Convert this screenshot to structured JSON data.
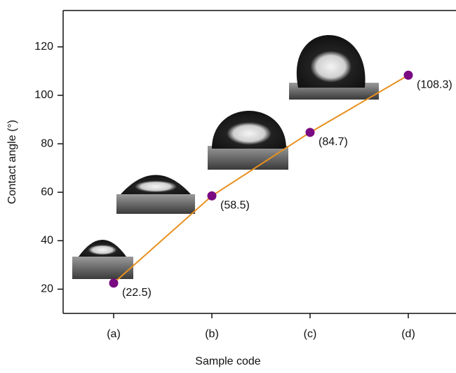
{
  "chart_data": {
    "type": "line",
    "x_label": "Sample code",
    "y_label": "Contact angle (°)",
    "categories": [
      "(a)",
      "(b)",
      "(c)",
      "(d)"
    ],
    "values": [
      22.5,
      58.5,
      84.7,
      108.3
    ],
    "value_labels": [
      "(22.5)",
      "(58.5)",
      "(84.7)",
      "(108.3)"
    ],
    "color": "#e8901e",
    "marker_color": "#7a0a82",
    "ylim": [
      10,
      135
    ],
    "yticks": [
      20,
      40,
      60,
      80,
      100,
      120
    ]
  }
}
